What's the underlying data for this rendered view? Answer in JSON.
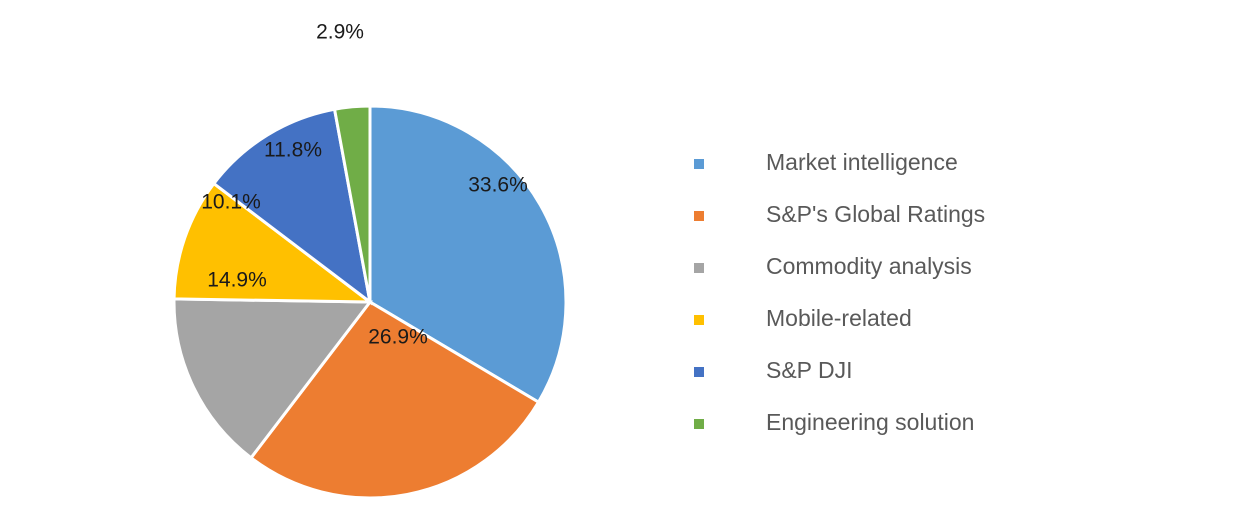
{
  "chart_data": {
    "type": "pie",
    "categories": [
      "Market intelligence",
      "S&P's Global Ratings",
      "Commodity analysis",
      "Mobile-related",
      "S&P DJI",
      "Engineering solution"
    ],
    "values": [
      33.6,
      26.9,
      14.9,
      10.1,
      11.8,
      2.9
    ],
    "value_labels": [
      "33.6%",
      "26.9%",
      "14.9%",
      "10.1%",
      "11.8%",
      "2.9%"
    ],
    "colors": [
      "#5b9bd5",
      "#ed7d31",
      "#a5a5a5",
      "#ffc000",
      "#4472c4",
      "#70ad47"
    ],
    "legend": "right"
  }
}
